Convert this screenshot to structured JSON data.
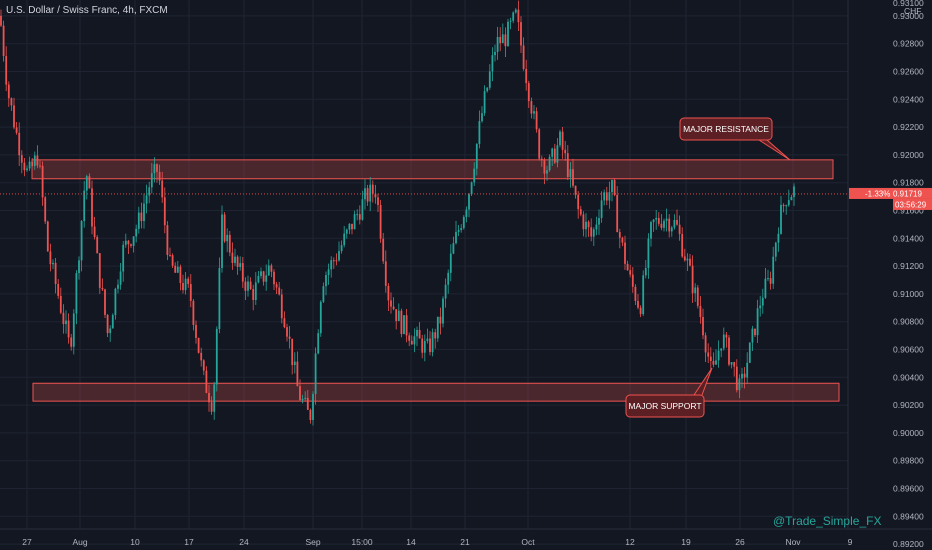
{
  "header": {
    "symbol_title": "U.S. Dollar / Swiss Franc, 4h, FXCM"
  },
  "watermark": "@Trade_Simple_FX",
  "colors": {
    "background": "#131722",
    "up": "#26a69a",
    "down": "#ef5350",
    "zone": "#ef5350"
  },
  "chart_data": {
    "type": "candlestick",
    "title": "U.S. Dollar / Swiss Franc, 4h, FXCM",
    "y_unit": "CHF",
    "ylim": [
      0.8906,
      0.931
    ],
    "y_ticks": [
      "0.93100",
      "0.93000",
      "0.92800",
      "0.92600",
      "0.92400",
      "0.92200",
      "0.92000",
      "0.91800",
      "0.91600",
      "0.91400",
      "0.91200",
      "0.91000",
      "0.90800",
      "0.90600",
      "0.90400",
      "0.90200",
      "0.90000",
      "0.89800",
      "0.89600",
      "0.89400",
      "0.89200"
    ],
    "x_ticks": [
      "27",
      "Aug",
      "10",
      "17",
      "24",
      "Sep",
      "15:00",
      "14",
      "21",
      "Oct",
      "12",
      "19",
      "26",
      "Nov",
      "9"
    ],
    "last_price": {
      "change": "-1.33%",
      "price": "0.91719",
      "countdown": "03:56:29"
    },
    "price_path": [
      [
        0,
        0.93
      ],
      [
        8,
        0.9245
      ],
      [
        18,
        0.921
      ],
      [
        28,
        0.9185
      ],
      [
        38,
        0.92
      ],
      [
        48,
        0.913
      ],
      [
        58,
        0.91
      ],
      [
        70,
        0.906
      ],
      [
        80,
        0.914
      ],
      [
        86,
        0.919
      ],
      [
        96,
        0.913
      ],
      [
        108,
        0.907
      ],
      [
        122,
        0.913
      ],
      [
        138,
        0.915
      ],
      [
        150,
        0.918
      ],
      [
        158,
        0.919
      ],
      [
        170,
        0.912
      ],
      [
        190,
        0.91
      ],
      [
        203,
        0.904
      ],
      [
        213,
        0.902
      ],
      [
        222,
        0.915
      ],
      [
        236,
        0.912
      ],
      [
        252,
        0.91
      ],
      [
        270,
        0.912
      ],
      [
        286,
        0.908
      ],
      [
        298,
        0.903
      ],
      [
        310,
        0.901
      ],
      [
        322,
        0.911
      ],
      [
        338,
        0.913
      ],
      [
        352,
        0.915
      ],
      [
        366,
        0.917
      ],
      [
        376,
        0.9175
      ],
      [
        388,
        0.91
      ],
      [
        400,
        0.908
      ],
      [
        412,
        0.907
      ],
      [
        428,
        0.906
      ],
      [
        440,
        0.908
      ],
      [
        452,
        0.913
      ],
      [
        468,
        0.917
      ],
      [
        482,
        0.923
      ],
      [
        496,
        0.928
      ],
      [
        506,
        0.9285
      ],
      [
        516,
        0.93
      ],
      [
        528,
        0.925
      ],
      [
        540,
        0.92
      ],
      [
        548,
        0.919
      ],
      [
        560,
        0.921
      ],
      [
        568,
        0.919
      ],
      [
        578,
        0.916
      ],
      [
        592,
        0.914
      ],
      [
        602,
        0.917
      ],
      [
        612,
        0.9175
      ],
      [
        620,
        0.914
      ],
      [
        630,
        0.911
      ],
      [
        640,
        0.909
      ],
      [
        652,
        0.915
      ],
      [
        664,
        0.9155
      ],
      [
        676,
        0.915
      ],
      [
        688,
        0.912
      ],
      [
        702,
        0.908
      ],
      [
        712,
        0.904
      ],
      [
        722,
        0.907
      ],
      [
        732,
        0.905
      ],
      [
        740,
        0.903
      ],
      [
        750,
        0.906
      ],
      [
        762,
        0.91
      ],
      [
        770,
        0.911
      ],
      [
        778,
        0.915
      ],
      [
        786,
        0.917
      ],
      [
        795,
        0.9175
      ]
    ],
    "zones": [
      {
        "name": "resistance",
        "low": 0.9185,
        "high": 0.9195
      },
      {
        "name": "support",
        "low": 0.9025,
        "high": 0.9035
      }
    ],
    "annotations": [
      {
        "label": "MAJOR RESISTANCE",
        "x": 0.9205
      },
      {
        "label": "MAJOR SUPPORT",
        "x": 0.9003
      }
    ],
    "grid": true,
    "legend": "none"
  }
}
